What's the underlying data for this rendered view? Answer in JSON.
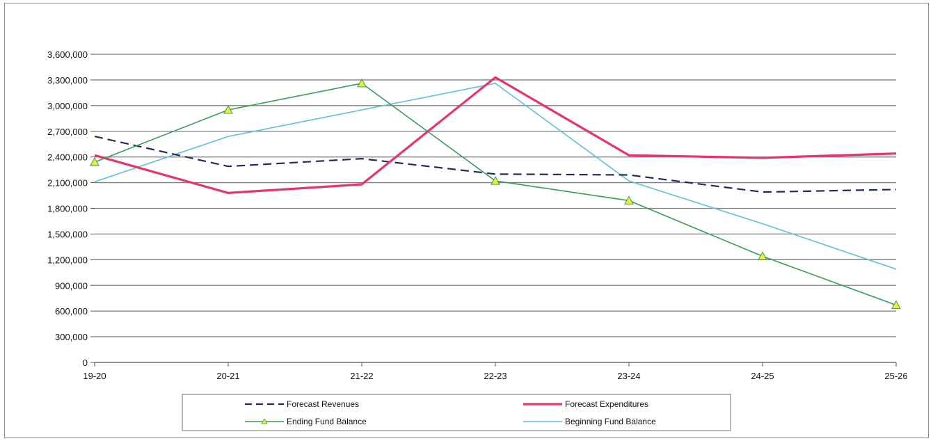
{
  "chart_data": {
    "type": "line",
    "title": "",
    "xlabel": "",
    "ylabel": "",
    "categories": [
      "19-20",
      "20-21",
      "21-22",
      "22-23",
      "23-24",
      "24-25",
      "25-26"
    ],
    "ylim": [
      0,
      3600000
    ],
    "yticks": [
      0,
      300000,
      600000,
      900000,
      1200000,
      1500000,
      1800000,
      2100000,
      2400000,
      2700000,
      3000000,
      3300000,
      3600000
    ],
    "ytick_labels": [
      "0",
      "300,000",
      "600,000",
      "900,000",
      "1,200,000",
      "1,500,000",
      "1,800,000",
      "2,100,000",
      "2,400,000",
      "2,700,000",
      "3,000,000",
      "3,300,000",
      "3,600,000"
    ],
    "grid": "horizontal",
    "legend_position": "bottom",
    "series": [
      {
        "name": "Forecast Revenues",
        "color": "#1f2d5a",
        "style": "dashed",
        "marker": "none",
        "values": [
          2640000,
          2290000,
          2380000,
          2200000,
          2190000,
          1990000,
          2020000
        ]
      },
      {
        "name": "Forecast Expenditures",
        "color": "#e8336e",
        "style": "thick",
        "marker": "none",
        "values": [
          2420000,
          1980000,
          2080000,
          3330000,
          2420000,
          2390000,
          2440000
        ]
      },
      {
        "name": "Ending Fund Balance",
        "color": "#3a9a58",
        "style": "solid",
        "marker": "triangle",
        "values": [
          2340000,
          2950000,
          3260000,
          2120000,
          1890000,
          1240000,
          670000
        ]
      },
      {
        "name": "Beginning Fund Balance",
        "color": "#5bc0de",
        "style": "solid",
        "marker": "none",
        "values": [
          2110000,
          2640000,
          2950000,
          3260000,
          2120000,
          1620000,
          1090000
        ]
      }
    ]
  }
}
